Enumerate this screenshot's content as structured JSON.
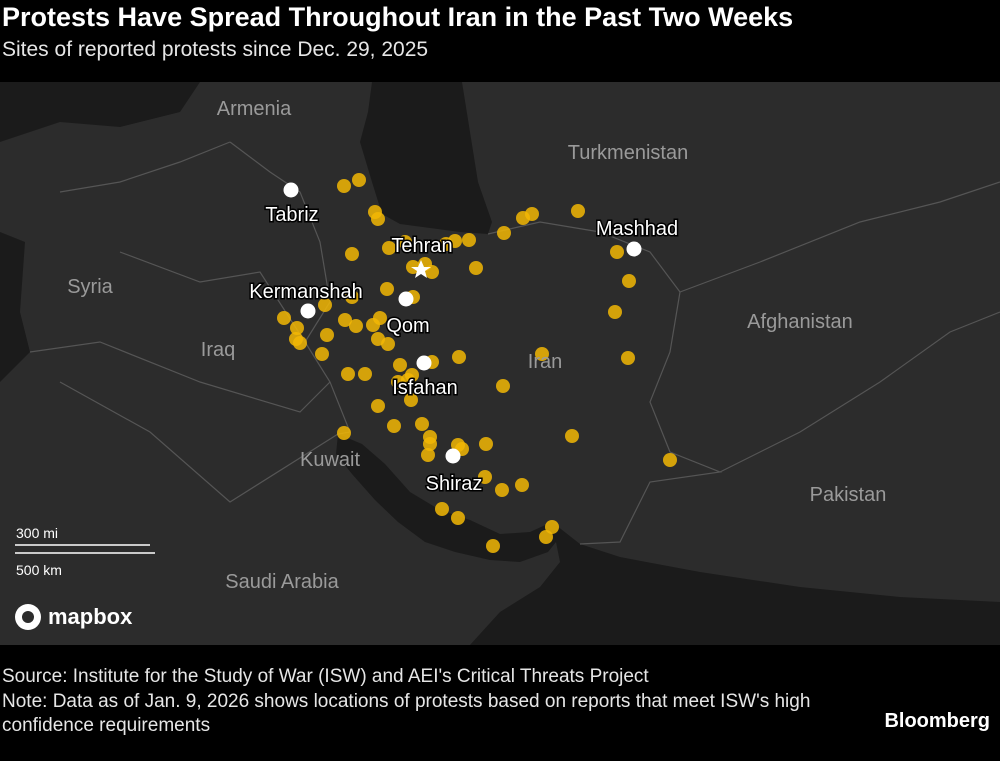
{
  "header": {
    "title": "Protests Have Spread Throughout Iran in the Past Two Weeks",
    "subtitle": "Sites of reported protests since Dec. 29, 2025"
  },
  "map": {
    "countries": [
      "Armenia",
      "Turkmenistan",
      "Syria",
      "Iraq",
      "Afghanistan",
      "Iran",
      "Kuwait",
      "Pakistan",
      "Saudi Arabia"
    ],
    "cities": [
      "Tabriz",
      "Tehran",
      "Mashhad",
      "Kermanshah",
      "Qom",
      "Isfahan",
      "Shiraz"
    ],
    "scale": {
      "miles": "300 mi",
      "km": "500 km"
    },
    "attribution": "mapbox"
  },
  "footer": {
    "source": "Source: Institute for the Study of War (ISW) and AEI's Critical Threats Project",
    "note": "Note: Data as of Jan. 9, 2026 shows locations of protests based on reports that meet ISW's high confidence requirements",
    "brand": "Bloomberg"
  }
}
